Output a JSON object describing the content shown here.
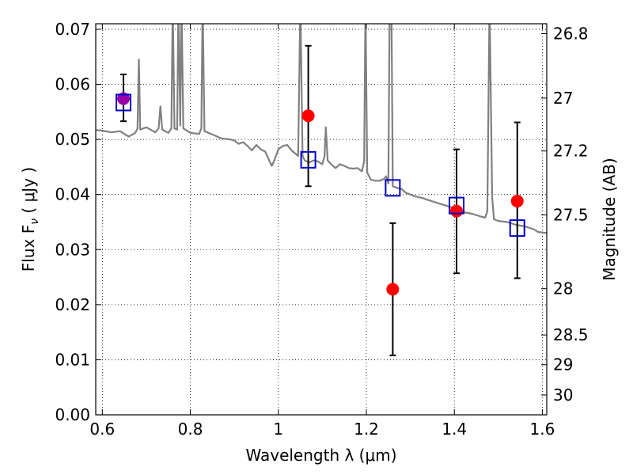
{
  "chart_data": {
    "type": "scatter",
    "xlabel": "Wavelength  λ (μm)",
    "ylabel": "Flux  F",
    "ylabel_sub": "ν",
    "ylabel_unit": "  ( μJy )",
    "y2label": "Magnitude (AB)",
    "xlim": [
      0.585,
      1.61
    ],
    "ylim": [
      0.0,
      0.071
    ],
    "grid": true,
    "x_ticks": [
      0.6,
      0.8,
      1.0,
      1.2,
      1.4,
      1.6
    ],
    "x_tick_labels": [
      "0.6",
      "0.8",
      "1",
      "1.2",
      "1.4",
      "1.6"
    ],
    "y_ticks": [
      0.0,
      0.01,
      0.02,
      0.03,
      0.04,
      0.05,
      0.06,
      0.07
    ],
    "y_tick_labels": [
      "0.00",
      "0.01",
      "0.02",
      "0.03",
      "0.04",
      "0.05",
      "0.06",
      "0.07"
    ],
    "y2_ticks": [
      {
        "label": "26.8",
        "flux": 0.0692
      },
      {
        "label": "27",
        "flux": 0.0575
      },
      {
        "label": "27.2",
        "flux": 0.0479
      },
      {
        "label": "27.5",
        "flux": 0.0363
      },
      {
        "label": "28",
        "flux": 0.0229
      },
      {
        "label": "28.5",
        "flux": 0.0145
      },
      {
        "label": "29",
        "flux": 0.0091
      },
      {
        "label": "30",
        "flux": 0.0036
      }
    ],
    "series": [
      {
        "kind": "observed",
        "color": "#ff0000",
        "points": [
          {
            "x": 1.068,
            "y": 0.0543,
            "ylo": 0.0415,
            "yhi": 0.067
          },
          {
            "x": 1.26,
            "y": 0.0228,
            "ylo": 0.0108,
            "yhi": 0.0348
          },
          {
            "x": 1.405,
            "y": 0.037,
            "ylo": 0.0257,
            "yhi": 0.0482
          },
          {
            "x": 1.543,
            "y": 0.0388,
            "ylo": 0.0248,
            "yhi": 0.0531
          }
        ]
      },
      {
        "kind": "observed",
        "color": "#9900aa",
        "points": [
          {
            "x": 0.648,
            "y": 0.0574,
            "ylo": 0.0533,
            "yhi": 0.0618
          }
        ]
      },
      {
        "kind": "model-photometry",
        "color": "#0000cc",
        "points": [
          {
            "x": 0.648,
            "y": 0.0567
          },
          {
            "x": 1.068,
            "y": 0.0463
          },
          {
            "x": 1.26,
            "y": 0.0412
          },
          {
            "x": 1.405,
            "y": 0.038
          },
          {
            "x": 1.543,
            "y": 0.0339
          }
        ]
      },
      {
        "kind": "model-spectrum",
        "color": "#808080",
        "points": [
          [
            0.585,
            0.0517
          ],
          [
            0.6,
            0.0516
          ],
          [
            0.62,
            0.0513
          ],
          [
            0.64,
            0.0515
          ],
          [
            0.66,
            0.0505
          ],
          [
            0.675,
            0.0512
          ],
          [
            0.68,
            0.052
          ],
          [
            0.683,
            0.0645
          ],
          [
            0.686,
            0.0518
          ],
          [
            0.7,
            0.0522
          ],
          [
            0.72,
            0.0513
          ],
          [
            0.728,
            0.052
          ],
          [
            0.732,
            0.056
          ],
          [
            0.736,
            0.0518
          ],
          [
            0.75,
            0.0512
          ],
          [
            0.757,
            0.052
          ],
          [
            0.76,
            0.075
          ],
          [
            0.764,
            0.052
          ],
          [
            0.77,
            0.0518
          ],
          [
            0.773,
            0.075
          ],
          [
            0.777,
            0.0525
          ],
          [
            0.78,
            0.075
          ],
          [
            0.784,
            0.052
          ],
          [
            0.8,
            0.0512
          ],
          [
            0.82,
            0.051
          ],
          [
            0.825,
            0.052
          ],
          [
            0.828,
            0.075
          ],
          [
            0.832,
            0.0515
          ],
          [
            0.85,
            0.0509
          ],
          [
            0.87,
            0.0502
          ],
          [
            0.89,
            0.05
          ],
          [
            0.9,
            0.0498
          ],
          [
            0.91,
            0.0492
          ],
          [
            0.92,
            0.0495
          ],
          [
            0.93,
            0.0488
          ],
          [
            0.94,
            0.048
          ],
          [
            0.95,
            0.049
          ],
          [
            0.96,
            0.0482
          ],
          [
            0.97,
            0.0478
          ],
          [
            0.985,
            0.0452
          ],
          [
            0.99,
            0.046
          ],
          [
            1.0,
            0.0482
          ],
          [
            1.01,
            0.0488
          ],
          [
            1.02,
            0.049
          ],
          [
            1.03,
            0.048
          ],
          [
            1.045,
            0.047
          ],
          [
            1.05,
            0.075
          ],
          [
            1.055,
            0.047
          ],
          [
            1.06,
            0.0462
          ],
          [
            1.07,
            0.0458
          ],
          [
            1.08,
            0.0462
          ],
          [
            1.09,
            0.046
          ],
          [
            1.1,
            0.0455
          ],
          [
            1.105,
            0.047
          ],
          [
            1.108,
            0.0522
          ],
          [
            1.112,
            0.0462
          ],
          [
            1.12,
            0.0455
          ],
          [
            1.13,
            0.0448
          ],
          [
            1.14,
            0.0455
          ],
          [
            1.15,
            0.0452
          ],
          [
            1.16,
            0.0448
          ],
          [
            1.17,
            0.0447
          ],
          [
            1.18,
            0.0448
          ],
          [
            1.19,
            0.0442
          ],
          [
            1.195,
            0.046
          ],
          [
            1.198,
            0.075
          ],
          [
            1.202,
            0.044
          ],
          [
            1.21,
            0.0427
          ],
          [
            1.22,
            0.0425
          ],
          [
            1.23,
            0.0425
          ],
          [
            1.24,
            0.0428
          ],
          [
            1.245,
            0.0433
          ],
          [
            1.25,
            0.042
          ],
          [
            1.253,
            0.075
          ],
          [
            1.257,
            0.075
          ],
          [
            1.26,
            0.0415
          ],
          [
            1.27,
            0.0412
          ],
          [
            1.28,
            0.041
          ],
          [
            1.29,
            0.0403
          ],
          [
            1.3,
            0.04
          ],
          [
            1.31,
            0.0397
          ],
          [
            1.32,
            0.0395
          ],
          [
            1.33,
            0.0393
          ],
          [
            1.34,
            0.039
          ],
          [
            1.36,
            0.0385
          ],
          [
            1.38,
            0.038
          ],
          [
            1.4,
            0.0375
          ],
          [
            1.42,
            0.0368
          ],
          [
            1.44,
            0.0365
          ],
          [
            1.46,
            0.036
          ],
          [
            1.47,
            0.0358
          ],
          [
            1.475,
            0.037
          ],
          [
            1.48,
            0.075
          ],
          [
            1.486,
            0.0395
          ],
          [
            1.49,
            0.0355
          ],
          [
            1.5,
            0.0352
          ],
          [
            1.52,
            0.035
          ],
          [
            1.54,
            0.0345
          ],
          [
            1.56,
            0.0342
          ],
          [
            1.58,
            0.0337
          ],
          [
            1.59,
            0.0332
          ],
          [
            1.61,
            0.033
          ]
        ]
      }
    ]
  }
}
